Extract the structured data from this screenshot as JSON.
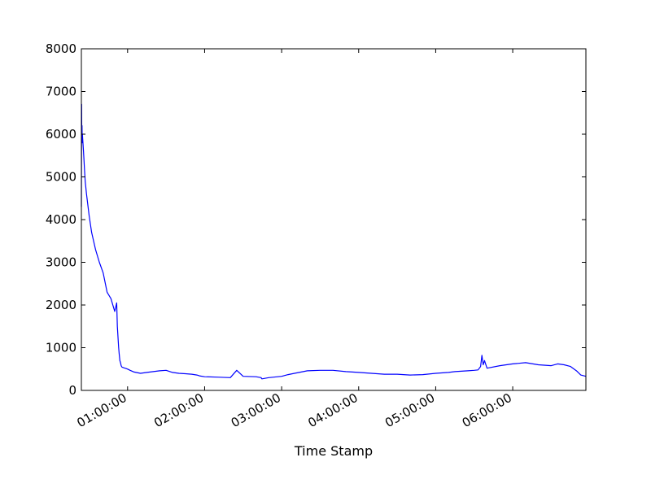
{
  "chart_data": {
    "type": "line",
    "title": "",
    "xlabel": "Time Stamp",
    "ylabel": "",
    "ylim": [
      0,
      8000
    ],
    "xlim": [
      "00:24:00",
      "06:57:00"
    ],
    "y_ticks": [
      0,
      1000,
      2000,
      3000,
      4000,
      5000,
      6000,
      7000,
      8000
    ],
    "x_ticks": [
      "01:00:00",
      "02:00:00",
      "03:00:00",
      "04:00:00",
      "05:00:00",
      "06:00:00"
    ],
    "grid": false,
    "legend": "none",
    "series": [
      {
        "color": "#0000ff",
        "x": [
          "00:24:00",
          "00:24:10",
          "00:24:20",
          "00:24:30",
          "00:24:40",
          "00:24:50",
          "00:25:00",
          "00:25:20",
          "00:25:40",
          "00:26:00",
          "00:26:30",
          "00:27:00",
          "00:28:00",
          "00:30:00",
          "00:32:00",
          "00:35:00",
          "00:38:00",
          "00:41:00",
          "00:44:00",
          "00:47:00",
          "00:50:00",
          "00:51:30",
          "00:52:00",
          "00:53:00",
          "00:53:30",
          "00:54:00",
          "00:54:30",
          "00:55:00",
          "00:55:30",
          "00:56:00",
          "00:57:00",
          "00:58:00",
          "00:59:00",
          "01:00:00",
          "01:02:00",
          "01:05:00",
          "01:10:00",
          "01:15:00",
          "01:20:00",
          "01:25:00",
          "01:30:00",
          "01:35:00",
          "01:40:00",
          "01:45:00",
          "01:50:00",
          "01:52:00",
          "01:54:00",
          "01:56:00",
          "02:00:00",
          "02:10:00",
          "02:20:00",
          "02:25:00",
          "02:30:00",
          "02:40:00",
          "02:44:00",
          "02:44:20",
          "02:44:40",
          "02:50:00",
          "03:00:00",
          "03:05:00",
          "03:10:00",
          "03:20:00",
          "03:30:00",
          "03:40:00",
          "03:50:00",
          "04:00:00",
          "04:10:00",
          "04:20:00",
          "04:30:00",
          "04:40:00",
          "04:50:00",
          "05:00:00",
          "05:10:00",
          "05:15:00",
          "05:20:00",
          "05:25:00",
          "05:30:00",
          "05:33:00",
          "05:35:00",
          "05:36:00",
          "05:37:00",
          "05:38:00",
          "05:40:00",
          "05:50:00",
          "06:00:00",
          "06:10:00",
          "06:20:00",
          "06:30:00",
          "06:35:00",
          "06:40:00",
          "06:45:00",
          "06:50:00",
          "06:53:00",
          "06:57:00"
        ],
        "values": [
          4300,
          6700,
          5900,
          6200,
          5800,
          6000,
          5900,
          5750,
          5600,
          5400,
          5150,
          4900,
          4600,
          4100,
          3700,
          3300,
          3000,
          2750,
          2300,
          2150,
          1850,
          2050,
          1500,
          1000,
          850,
          700,
          650,
          580,
          550,
          540,
          530,
          520,
          510,
          500,
          470,
          430,
          400,
          420,
          440,
          460,
          470,
          420,
          400,
          390,
          380,
          370,
          360,
          340,
          320,
          310,
          300,
          470,
          330,
          320,
          300,
          280,
          270,
          300,
          330,
          370,
          400,
          460,
          470,
          470,
          440,
          420,
          400,
          380,
          380,
          360,
          370,
          400,
          420,
          440,
          450,
          460,
          470,
          480,
          560,
          820,
          600,
          700,
          520,
          580,
          620,
          650,
          600,
          580,
          620,
          600,
          560,
          450,
          360,
          330
        ]
      }
    ]
  }
}
